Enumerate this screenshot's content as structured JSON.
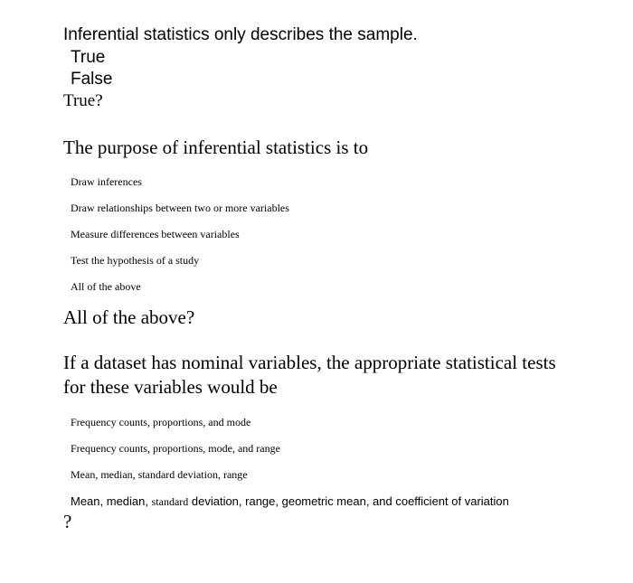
{
  "q1": {
    "title": "Inferential statistics only describes the sample.",
    "option1": "True",
    "option2": "False",
    "answer": "True?"
  },
  "q2": {
    "title": "The purpose of inferential statistics is to",
    "option1": "Draw inferences",
    "option2": "Draw relationships between two or more variables",
    "option3": "Measure differences between variables",
    "option4": "Test the hypothesis of a study",
    "option5": "All of the above",
    "answer": "All of the above?"
  },
  "q3": {
    "title": "If a dataset has nominal variables, the appropriate statistical tests for these variables would be",
    "option1": "Frequency counts, proportions, and mode",
    "option2": "Frequency counts, proportions, mode, and range",
    "option3": "Mean, median, standard deviation, range",
    "option4_part1": "Mean, median, ",
    "option4_part2": "standard",
    "option4_part3": " deviation, range, geometric mean, and coefficient of variation",
    "answer": "?"
  }
}
